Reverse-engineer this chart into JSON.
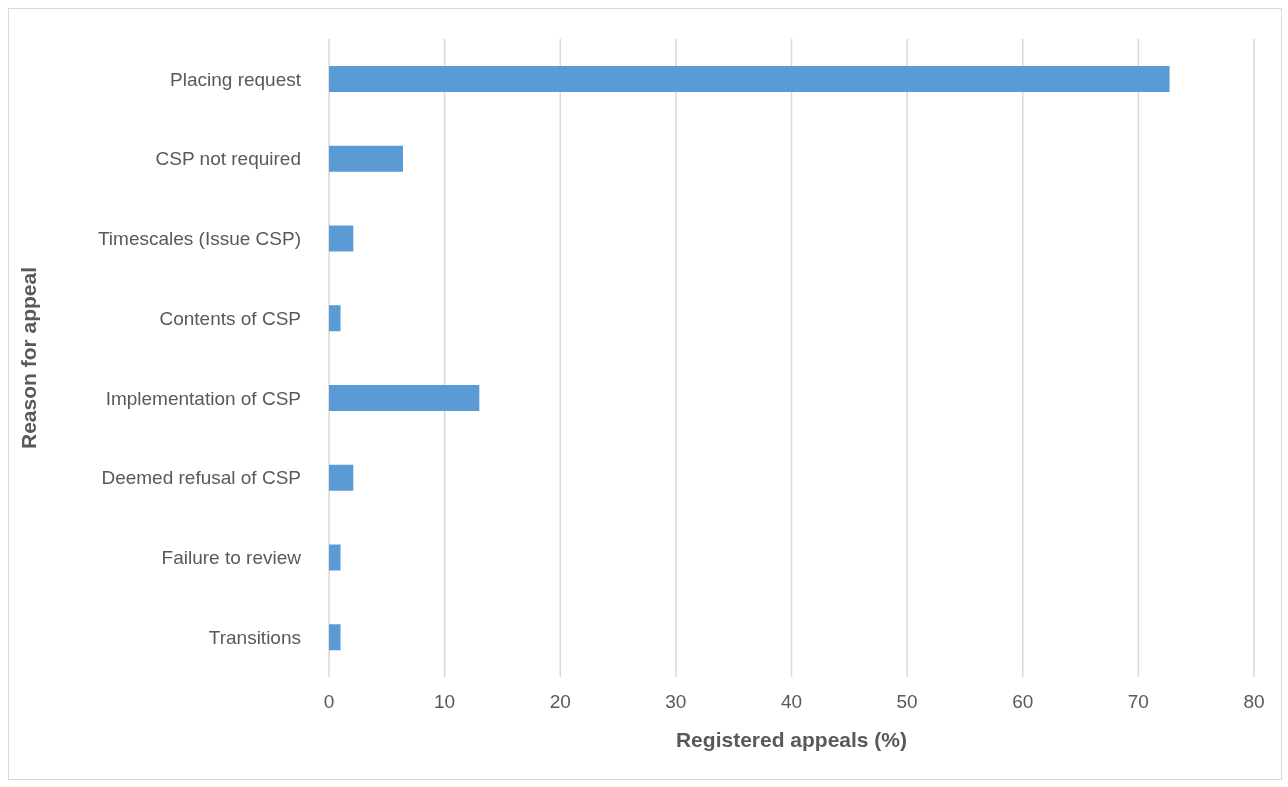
{
  "chart_data": {
    "type": "bar",
    "orientation": "horizontal",
    "xlabel": "Registered appeals (%)",
    "ylabel": "Reason for appeal",
    "categories": [
      "Placing request",
      "CSP not required",
      "Timescales (Issue CSP)",
      "Contents of CSP",
      "Implementation of CSP",
      "Deemed refusal of CSP",
      "Failure to review",
      "Transitions"
    ],
    "values": [
      72.7,
      6.4,
      2.1,
      1.0,
      13.0,
      2.1,
      1.0,
      1.0
    ],
    "color": "#5b9bd5",
    "xlim": [
      0,
      80
    ],
    "xticks": [
      0,
      10,
      20,
      30,
      40,
      50,
      60,
      70,
      80
    ],
    "grid": "x"
  }
}
